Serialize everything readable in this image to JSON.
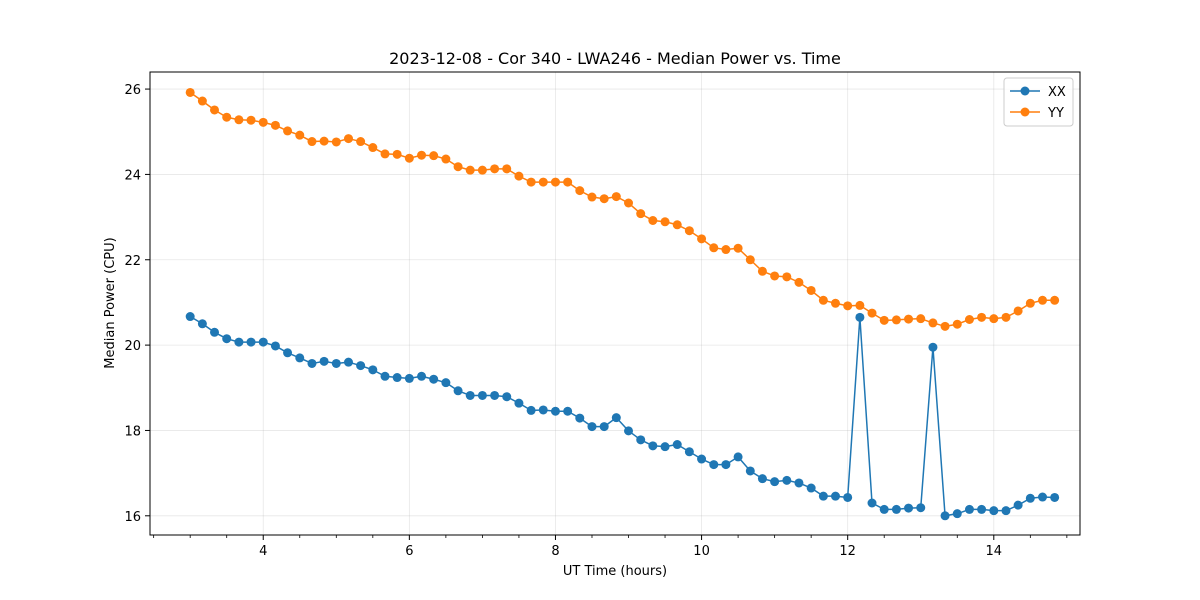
{
  "chart_data": {
    "type": "line",
    "title": "2023-12-08 - Cor 340 - LWA246 - Median Power vs. Time",
    "xlabel": "UT Time (hours)",
    "ylabel": "Median Power (CPU)",
    "xlim": [
      2.45,
      15.18
    ],
    "ylim": [
      15.55,
      26.4
    ],
    "xticks": [
      4,
      6,
      8,
      10,
      12,
      14
    ],
    "yticks": [
      16,
      18,
      20,
      22,
      24,
      26
    ],
    "grid": true,
    "legend_position": "top-right",
    "x": [
      3.0,
      3.167,
      3.333,
      3.5,
      3.667,
      3.833,
      4.0,
      4.167,
      4.333,
      4.5,
      4.667,
      4.833,
      5.0,
      5.167,
      5.333,
      5.5,
      5.667,
      5.833,
      6.0,
      6.167,
      6.333,
      6.5,
      6.667,
      6.833,
      7.0,
      7.167,
      7.333,
      7.5,
      7.667,
      7.833,
      8.0,
      8.167,
      8.333,
      8.5,
      8.667,
      8.833,
      9.0,
      9.167,
      9.333,
      9.5,
      9.667,
      9.833,
      10.0,
      10.167,
      10.333,
      10.5,
      10.667,
      10.833,
      11.0,
      11.167,
      11.333,
      11.5,
      11.667,
      11.833,
      12.0,
      12.167,
      12.333,
      12.5,
      12.667,
      12.833,
      13.0,
      13.167,
      13.333,
      13.5,
      13.667,
      13.833,
      14.0,
      14.167,
      14.333,
      14.5,
      14.667,
      14.833
    ],
    "series": [
      {
        "name": "XX",
        "color": "#1f77b4",
        "values": [
          20.67,
          20.5,
          20.3,
          20.15,
          20.07,
          20.07,
          20.07,
          19.98,
          19.82,
          19.7,
          19.57,
          19.62,
          19.57,
          19.6,
          19.52,
          19.42,
          19.27,
          19.24,
          19.22,
          19.27,
          19.2,
          19.12,
          18.93,
          18.82,
          18.82,
          18.82,
          18.79,
          18.64,
          18.47,
          18.48,
          18.45,
          18.45,
          18.29,
          18.09,
          18.09,
          18.3,
          17.99,
          17.78,
          17.64,
          17.62,
          17.67,
          17.5,
          17.33,
          17.2,
          17.2,
          17.38,
          17.05,
          16.87,
          16.8,
          16.83,
          16.77,
          16.65,
          16.46,
          16.46,
          16.43,
          20.65,
          16.3,
          16.15,
          16.15,
          16.18,
          16.19,
          19.95,
          16.0,
          16.05,
          16.15,
          16.15,
          16.12,
          16.12,
          16.25,
          16.41,
          16.44,
          16.43
        ]
      },
      {
        "name": "YY",
        "color": "#ff7f0e",
        "values": [
          25.92,
          25.72,
          25.51,
          25.34,
          25.28,
          25.27,
          25.22,
          25.15,
          25.02,
          24.92,
          24.77,
          24.78,
          24.76,
          24.84,
          24.77,
          24.63,
          24.48,
          24.47,
          24.38,
          24.45,
          24.44,
          24.36,
          24.18,
          24.1,
          24.1,
          24.13,
          24.13,
          23.96,
          23.82,
          23.82,
          23.82,
          23.82,
          23.62,
          23.47,
          23.43,
          23.48,
          23.33,
          23.08,
          22.92,
          22.89,
          22.82,
          22.68,
          22.49,
          22.28,
          22.24,
          22.27,
          22.0,
          21.73,
          21.62,
          21.6,
          21.47,
          21.28,
          21.05,
          20.98,
          20.92,
          20.93,
          20.75,
          20.58,
          20.59,
          20.61,
          20.62,
          20.52,
          20.44,
          20.49,
          20.6,
          20.65,
          20.62,
          20.65,
          20.8,
          20.98,
          21.05,
          21.05
        ]
      }
    ]
  }
}
